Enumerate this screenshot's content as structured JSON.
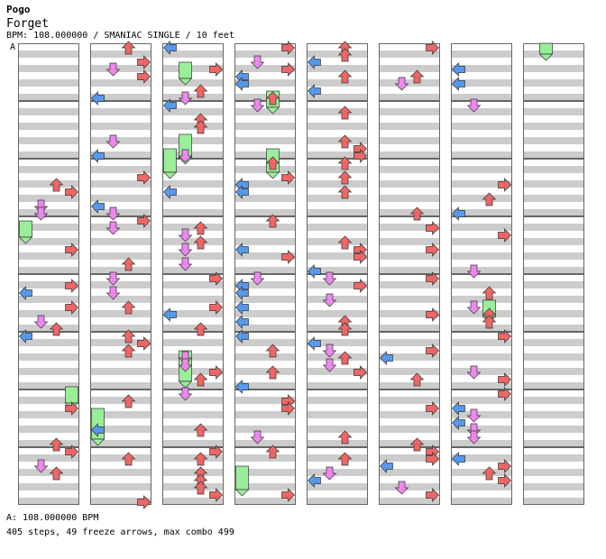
{
  "header": {
    "artist": "Pogo",
    "title": "Forget",
    "meta": "BPM: 108.000000 / SMANIAC SINGLE / 10 feet"
  },
  "bpm_marker": "A",
  "footer": {
    "bpm_line": "A: 108.000000 BPM",
    "stats": "405 steps, 49 freeze arrows, max combo 499"
  },
  "colors": {
    "left": "#5599ee",
    "down": "#ee88ee",
    "up": "#ee6666",
    "right": "#ee6666",
    "freeze": "#99ee99",
    "stripe": "#cccccc"
  },
  "chart_data": {
    "type": "table",
    "lanes": [
      "left",
      "down",
      "up",
      "right"
    ],
    "columns": 8,
    "measures_per_column": 8,
    "steps": 405,
    "freeze_arrows": 49,
    "max_combo": 499,
    "bpm": 108.0
  }
}
